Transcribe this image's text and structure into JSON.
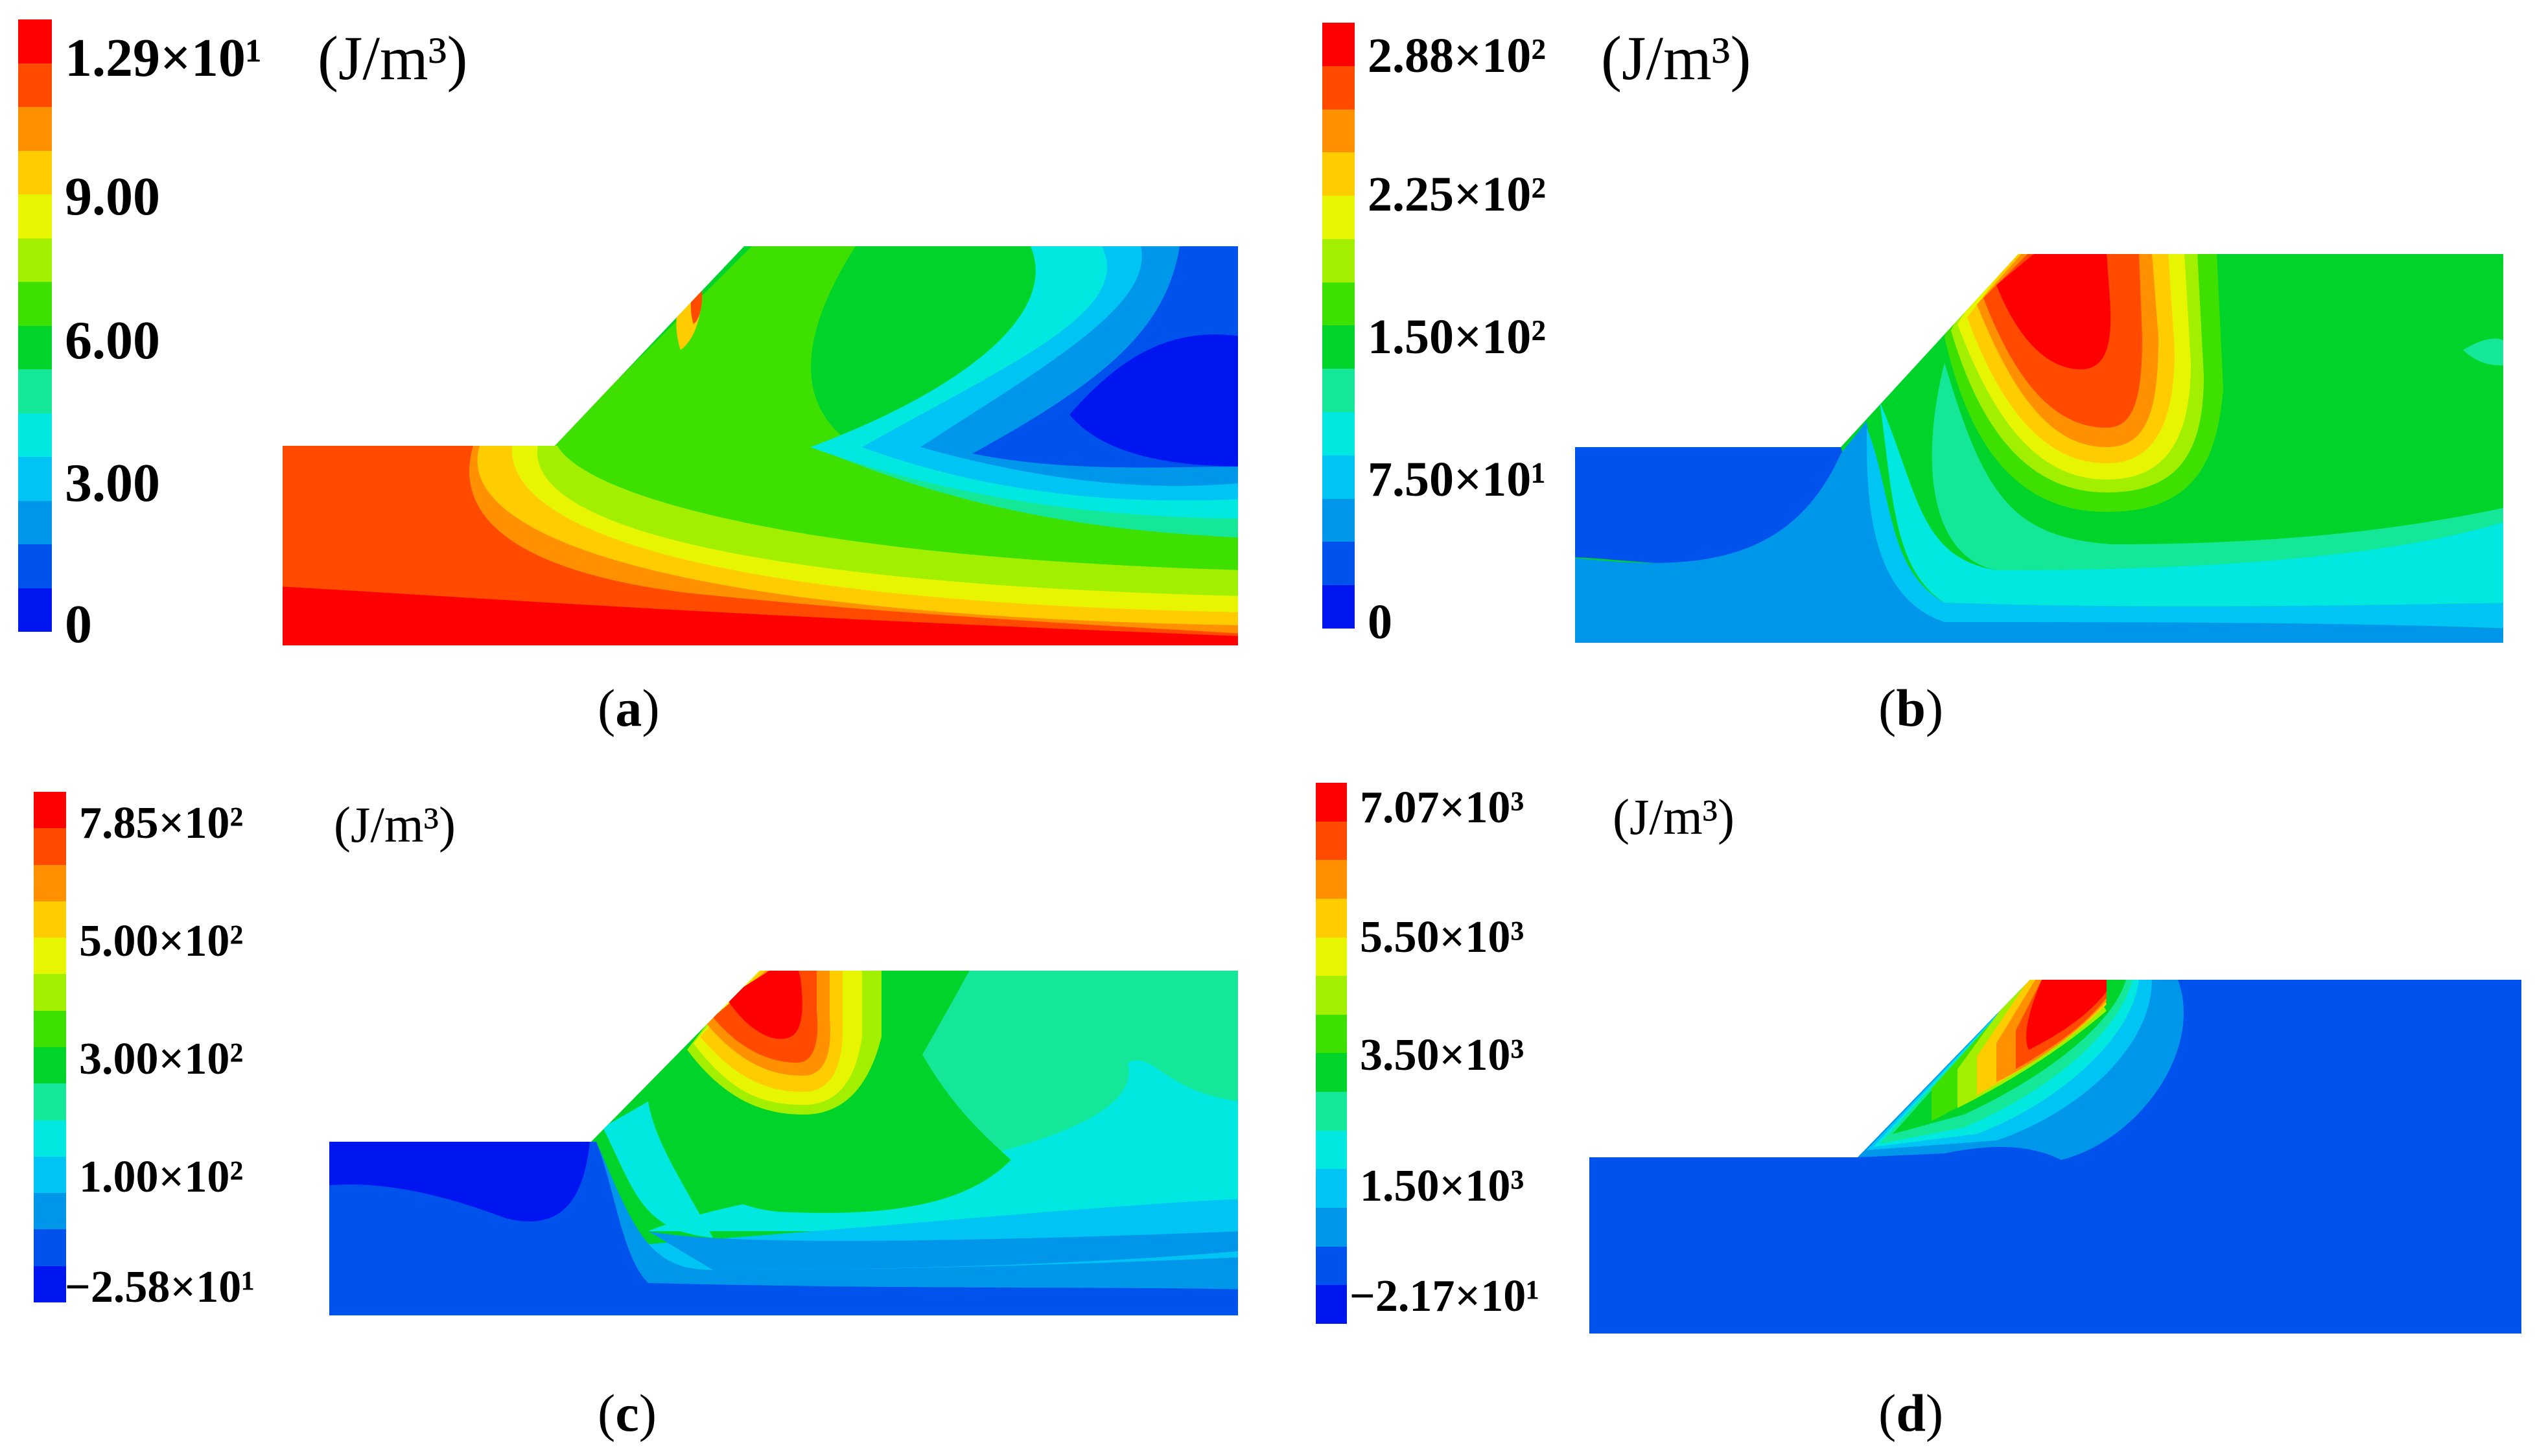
{
  "colormap": [
    "#ff0000",
    "#ff4a00",
    "#ff9100",
    "#ffcc00",
    "#e8f500",
    "#a2f000",
    "#3ee000",
    "#00d42a",
    "#14e898",
    "#00e8e0",
    "#00c4f4",
    "#0096ea",
    "#0052ec",
    "#0016f0"
  ],
  "panels": [
    {
      "id": "a",
      "caption": "a",
      "unit": "(J/m³)",
      "legend_labels": [
        "1.29×10¹",
        "9.00",
        "6.00",
        "3.00",
        "0"
      ]
    },
    {
      "id": "b",
      "caption": "b",
      "unit": "(J/m³)",
      "legend_labels": [
        "2.88×10²",
        "2.25×10²",
        "1.50×10²",
        "7.50×10¹",
        "0"
      ]
    },
    {
      "id": "c",
      "caption": "c",
      "unit": "(J/m³)",
      "legend_labels": [
        "7.85×10²",
        "5.00×10²",
        "3.00×10²",
        "1.00×10²",
        "−2.58×10¹"
      ]
    },
    {
      "id": "d",
      "caption": "d",
      "unit": "(J/m³)",
      "legend_labels": [
        "7.07×10³",
        "5.50×10³",
        "3.50×10³",
        "1.50×10³",
        "−2.17×10¹"
      ]
    }
  ]
}
